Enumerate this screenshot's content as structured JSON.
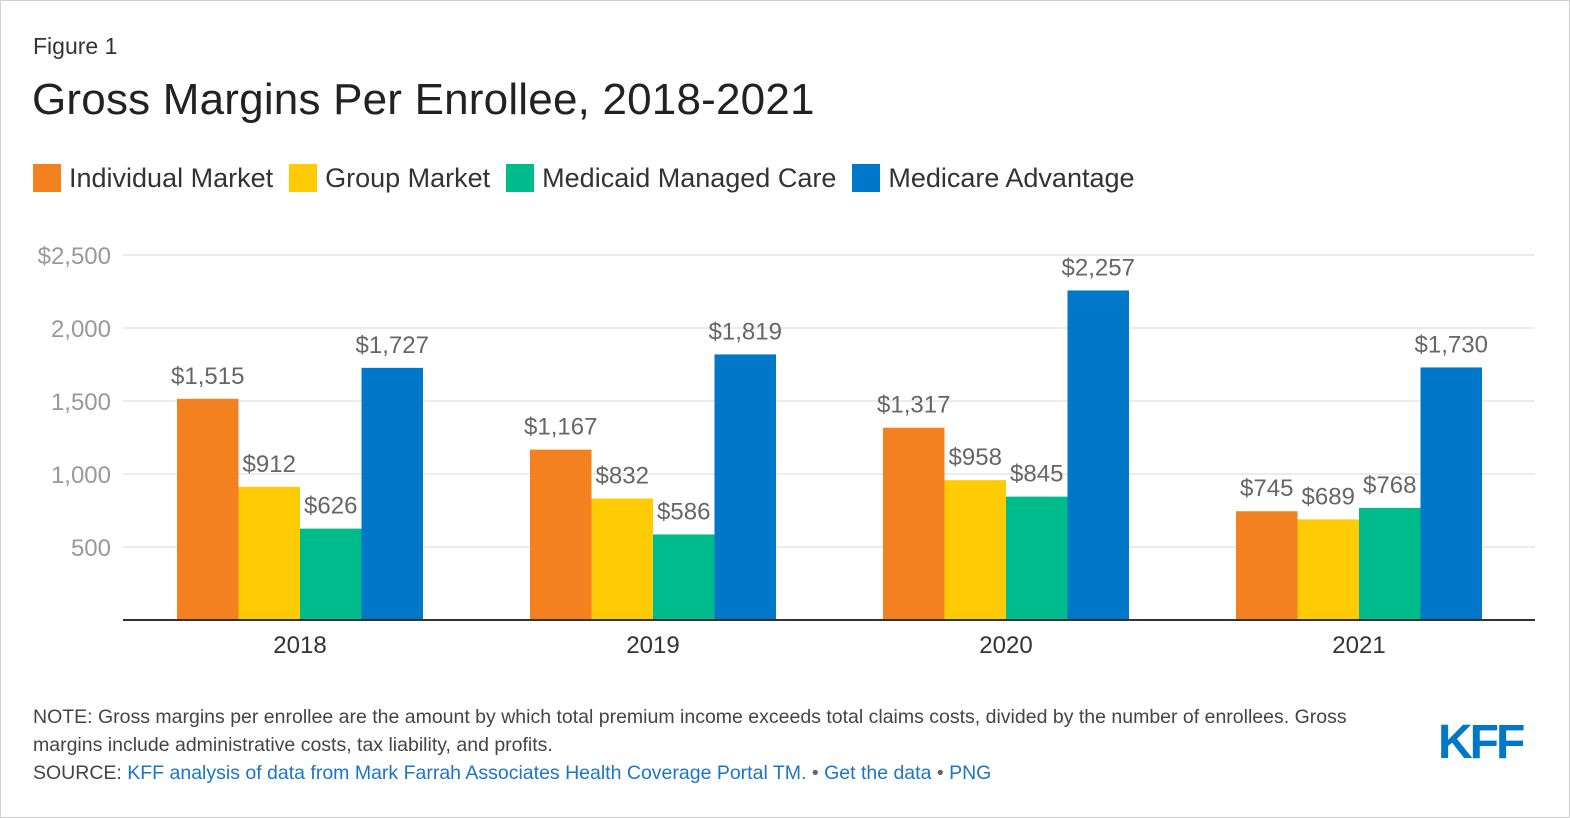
{
  "figure_label": "Figure 1",
  "title": "Gross Margins Per Enrollee, 2018-2021",
  "legend": [
    {
      "label": "Individual Market",
      "color": "#f48120"
    },
    {
      "label": "Group Market",
      "color": "#ffcb05"
    },
    {
      "label": "Medicaid Managed Care",
      "color": "#00bb8b"
    },
    {
      "label": "Medicare Advantage",
      "color": "#0077c8"
    }
  ],
  "chart_data": {
    "type": "bar",
    "title": "Gross Margins Per Enrollee, 2018-2021",
    "xlabel": "",
    "ylabel": "",
    "categories": [
      "2018",
      "2019",
      "2020",
      "2021"
    ],
    "series": [
      {
        "name": "Individual Market",
        "color": "#f48120",
        "values": [
          1515,
          1167,
          1317,
          745
        ],
        "labels": [
          "$1,515",
          "$1,167",
          "$1,317",
          "$745"
        ]
      },
      {
        "name": "Group Market",
        "color": "#ffcb05",
        "values": [
          912,
          832,
          958,
          689
        ],
        "labels": [
          "$912",
          "$832",
          "$958",
          "$689"
        ]
      },
      {
        "name": "Medicaid Managed Care",
        "color": "#00bb8b",
        "values": [
          626,
          586,
          845,
          768
        ],
        "labels": [
          "$626",
          "$586",
          "$845",
          "$768"
        ]
      },
      {
        "name": "Medicare Advantage",
        "color": "#0077c8",
        "values": [
          1727,
          1819,
          2257,
          1730
        ],
        "labels": [
          "$1,727",
          "$1,819",
          "$2,257",
          "$1,730"
        ]
      }
    ],
    "ylim": [
      0,
      2500
    ],
    "yticks": [
      500,
      1000,
      1500,
      2000,
      2500
    ],
    "ytick_labels": [
      "500",
      "1,000",
      "1,500",
      "2,000",
      "$2,500"
    ],
    "grid": true,
    "legend_position": "top-left"
  },
  "note": "NOTE: Gross margins per enrollee are the amount by which total premium income exceeds total claims costs, divided by the number of enrollees. Gross margins include administrative costs, tax liability, and profits.",
  "source": {
    "prefix": "SOURCE: ",
    "link_text": "KFF analysis of data from Mark Farrah Associates Health Coverage Portal TM.",
    "separator": "•",
    "get_data": "Get the data",
    "png": "PNG"
  },
  "logo_text": "KFF",
  "colors": {
    "grid": "#e6e6e6",
    "axis": "#333333",
    "tick_text": "#999999",
    "label_text": "#666666",
    "logo": "#0077c8"
  }
}
